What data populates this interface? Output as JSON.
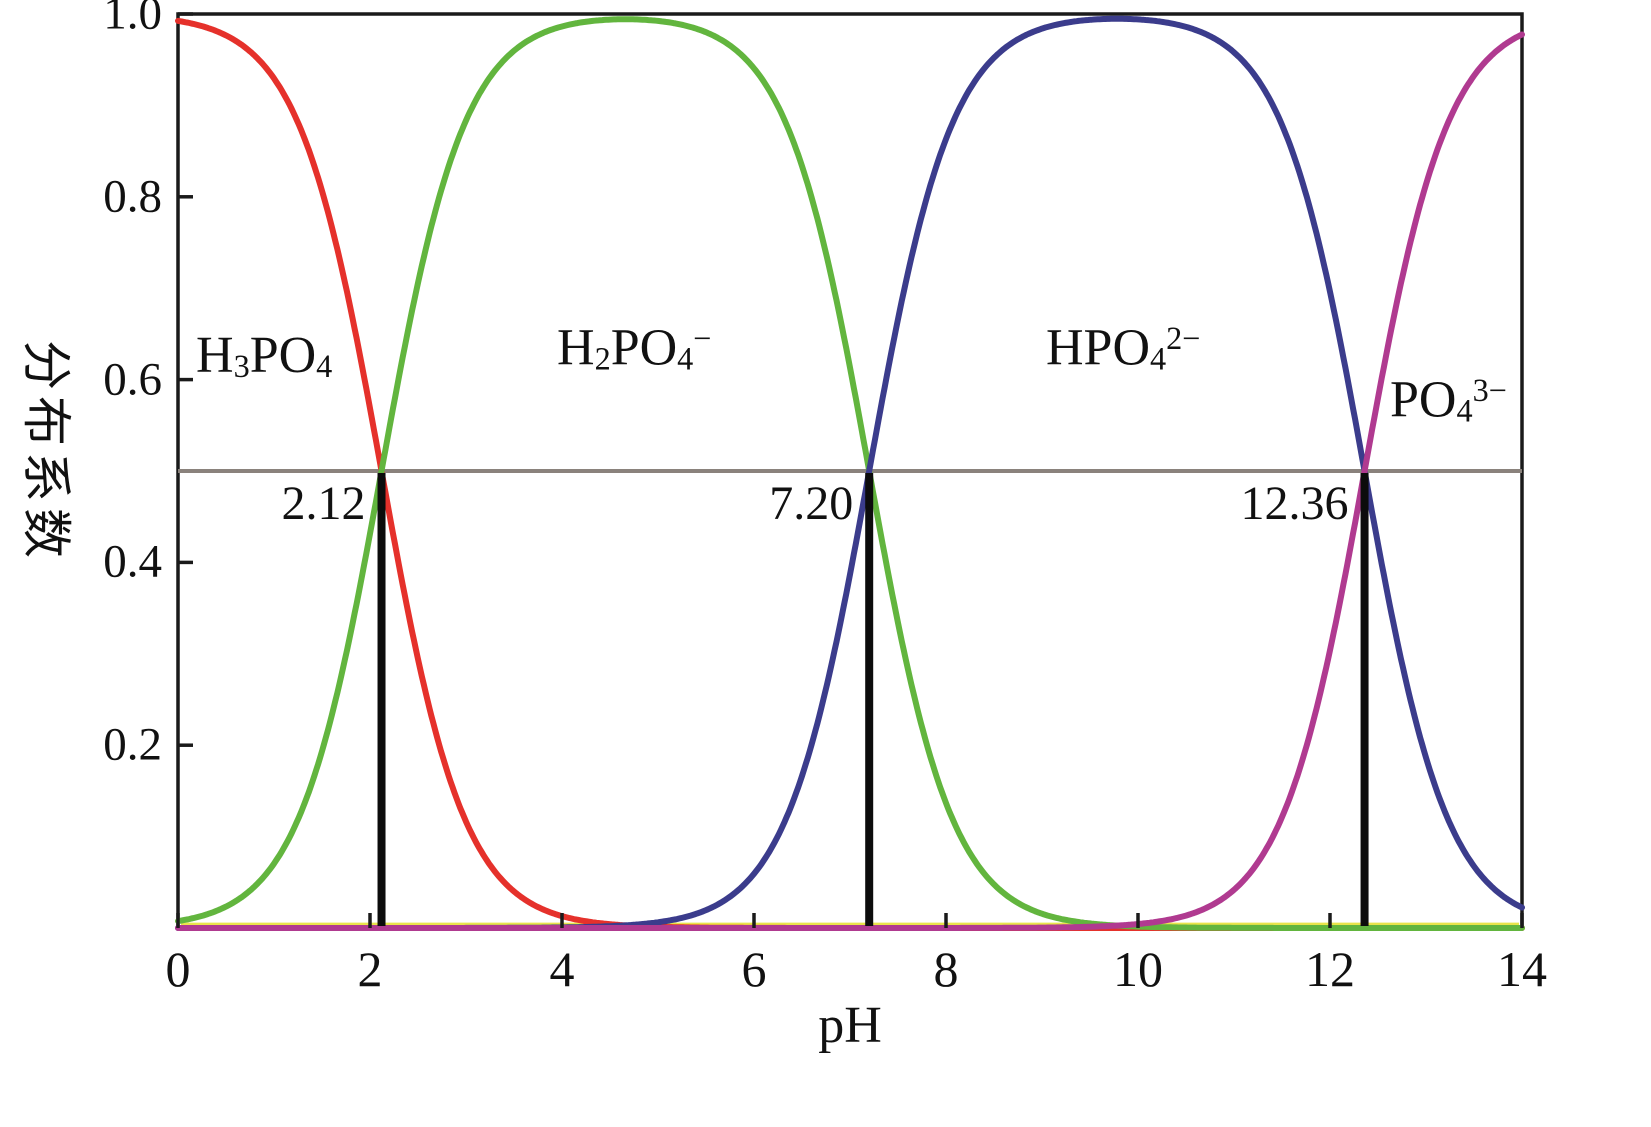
{
  "chart_data": {
    "type": "line",
    "title": "",
    "xlabel": "pH",
    "ylabel": "分布系数",
    "xlim": [
      0,
      14
    ],
    "ylim": [
      0,
      1.0
    ],
    "x_ticks": [
      "0",
      "2",
      "4",
      "6",
      "8",
      "10",
      "12",
      "14"
    ],
    "y_ticks": [
      "0.2",
      "0.4",
      "0.6",
      "0.8",
      "1.0"
    ],
    "grid": false,
    "legend_position": "inline-labels",
    "model": "triprotic acid speciation fractions computed from pKa values",
    "pka": [
      2.12,
      7.2,
      12.36
    ],
    "half_fraction_line": {
      "y": 0.5,
      "color": "#8a827c"
    },
    "baseline_artifact": {
      "y": 0.004,
      "color": "#e9e44b"
    },
    "marker_line_color": "#0c0c0c",
    "frame_color": "#1a1a1a",
    "equivalence_markers": [
      {
        "ph": 2.12,
        "label": "2.12"
      },
      {
        "ph": 7.2,
        "label": "7.20"
      },
      {
        "ph": 12.36,
        "label": "12.36"
      }
    ],
    "sample_ph": [
      0,
      1,
      2,
      2.12,
      3,
      4,
      5,
      6,
      7,
      7.2,
      8,
      9,
      10,
      11,
      12,
      12.36,
      13,
      14
    ],
    "series": [
      {
        "name": "H3PO4",
        "color": "#e5312b",
        "label_parts": [
          [
            "H",
            "n"
          ],
          [
            "3",
            "sub"
          ],
          [
            "PO",
            "n"
          ],
          [
            "4",
            "sub"
          ]
        ],
        "values": [
          0.992,
          0.93,
          0.569,
          0.5,
          0.117,
          0.013,
          0.001,
          0.0,
          0.0,
          0.0,
          0,
          0,
          0,
          0,
          0,
          0,
          0,
          0
        ]
      },
      {
        "name": "H2PO4-",
        "color": "#62b53e",
        "label_parts": [
          [
            "H",
            "n"
          ],
          [
            "2",
            "sub"
          ],
          [
            "PO",
            "n"
          ],
          [
            "4",
            "sub"
          ],
          [
            "−",
            "sup"
          ]
        ],
        "values": [
          0.008,
          0.07,
          0.431,
          0.5,
          0.883,
          0.986,
          0.993,
          0.94,
          0.613,
          0.5,
          0.137,
          0.016,
          0.002,
          0.0,
          0,
          0,
          0,
          0
        ]
      },
      {
        "name": "HPO4 2-",
        "color": "#3b3c8c",
        "label_parts": [
          [
            "HPO",
            "n"
          ],
          [
            "4",
            "sub"
          ],
          [
            "2−",
            "sup"
          ]
        ],
        "values": [
          0,
          0,
          0,
          0,
          0.0,
          0.001,
          0.006,
          0.059,
          0.387,
          0.5,
          0.863,
          0.984,
          0.994,
          0.958,
          0.696,
          0.5,
          0.186,
          0.022
        ]
      },
      {
        "name": "PO4 3-",
        "color": "#b03a90",
        "label_parts": [
          [
            "PO",
            "n"
          ],
          [
            "4",
            "sub"
          ],
          [
            "3−",
            "sup"
          ]
        ],
        "values": [
          0,
          0,
          0,
          0,
          0,
          0,
          0,
          0,
          0.0,
          0.0,
          0.0,
          0.0,
          0.004,
          0.042,
          0.304,
          0.5,
          0.814,
          0.978
        ]
      }
    ]
  }
}
